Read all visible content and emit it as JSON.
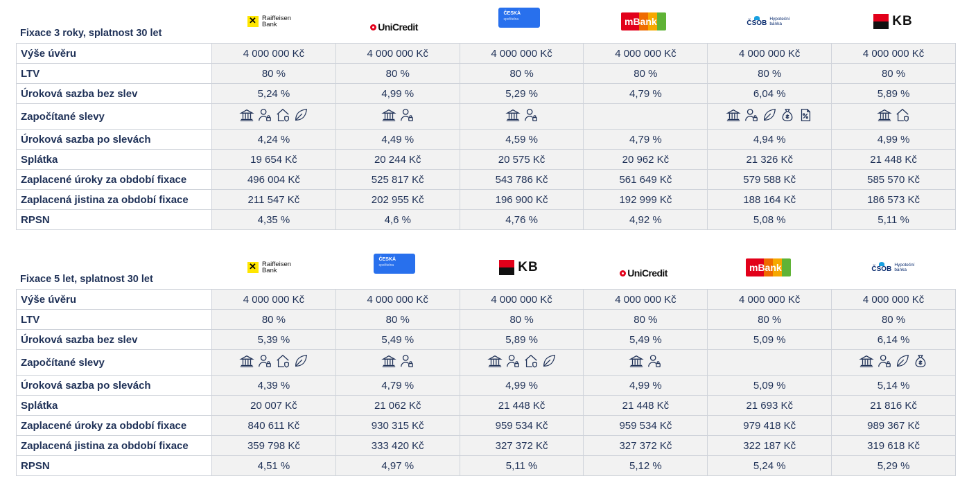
{
  "banks": {
    "raiffeisen": {
      "name": "Raiffeisen Bank",
      "l1": "Raiffeisen",
      "l2": "Bank"
    },
    "unicredit": {
      "name": "UniCredit"
    },
    "ceska": {
      "name": "Česká spořitelna",
      "l1": "ČESKÁ",
      "l2": "spořitelna"
    },
    "mbank": {
      "name": "mBank"
    },
    "csob": {
      "name": "ČSOB Hypoteční banka",
      "l1": "ČSOB",
      "l2": "Hypoteční",
      "l3": "banka"
    },
    "kb": {
      "name": "KB"
    }
  },
  "labels": {
    "amount": "Výše úvěru",
    "ltv": "LTV",
    "rate_base": "Úroková sazba bez slev",
    "discounts": "Započítané slevy",
    "rate_after": "Úroková sazba po slevách",
    "payment": "Splátka",
    "interest": "Zaplacené úroky za období fixace",
    "principal": "Zaplacená jistina za období fixace",
    "rpsn": "RPSN"
  },
  "icon_names": {
    "bank": "bank-building-icon",
    "person": "person-insurance-icon",
    "house": "house-insurance-icon",
    "leaf": "leaf-eco-icon",
    "money": "money-bag-icon",
    "percent": "percent-document-icon"
  },
  "tables": [
    {
      "title": "Fixace 3 roky, splatnost 30 let",
      "banks": [
        "raiffeisen",
        "unicredit",
        "ceska",
        "mbank",
        "csob",
        "kb"
      ],
      "rows": {
        "amount": [
          "4 000 000 Kč",
          "4 000 000 Kč",
          "4 000 000 Kč",
          "4 000 000 Kč",
          "4 000 000 Kč",
          "4 000 000 Kč"
        ],
        "ltv": [
          "80 %",
          "80 %",
          "80 %",
          "80 %",
          "80 %",
          "80 %"
        ],
        "rate_base": [
          "5,24 %",
          "4,99 %",
          "5,29 %",
          "4,79 %",
          "6,04 %",
          "5,89 %"
        ],
        "discounts": [
          [
            "bank",
            "person",
            "house",
            "leaf"
          ],
          [
            "bank",
            "person"
          ],
          [
            "bank",
            "person"
          ],
          [],
          [
            "bank",
            "person",
            "leaf",
            "money",
            "percent"
          ],
          [
            "bank",
            "house"
          ]
        ],
        "rate_after": [
          "4,24 %",
          "4,49 %",
          "4,59 %",
          "4,79 %",
          "4,94 %",
          "4,99 %"
        ],
        "payment": [
          "19 654 Kč",
          "20 244 Kč",
          "20 575 Kč",
          "20 962 Kč",
          "21 326 Kč",
          "21 448 Kč"
        ],
        "interest": [
          "496 004 Kč",
          "525 817 Kč",
          "543 786 Kč",
          "561 649 Kč",
          "579 588 Kč",
          "585 570 Kč"
        ],
        "principal": [
          "211 547 Kč",
          "202 955 Kč",
          "196 900 Kč",
          "192 999 Kč",
          "188 164 Kč",
          "186 573 Kč"
        ],
        "rpsn": [
          "4,35 %",
          "4,6 %",
          "4,76 %",
          "4,92 %",
          "5,08 %",
          "5,11 %"
        ]
      }
    },
    {
      "title": "Fixace 5 let, splatnost 30 let",
      "banks": [
        "raiffeisen",
        "ceska",
        "kb",
        "unicredit",
        "mbank",
        "csob"
      ],
      "rows": {
        "amount": [
          "4 000 000 Kč",
          "4 000 000 Kč",
          "4 000 000 Kč",
          "4 000 000 Kč",
          "4 000 000 Kč",
          "4 000 000 Kč"
        ],
        "ltv": [
          "80 %",
          "80 %",
          "80 %",
          "80 %",
          "80 %",
          "80 %"
        ],
        "rate_base": [
          "5,39 %",
          "5,49 %",
          "5,89 %",
          "5,49 %",
          "5,09 %",
          "6,14 %"
        ],
        "discounts": [
          [
            "bank",
            "person",
            "house",
            "leaf"
          ],
          [
            "bank",
            "person"
          ],
          [
            "bank",
            "person",
            "house",
            "leaf"
          ],
          [
            "bank",
            "person"
          ],
          [],
          [
            "bank",
            "person",
            "leaf",
            "money"
          ]
        ],
        "rate_after": [
          "4,39 %",
          "4,79 %",
          "4,99 %",
          "4,99 %",
          "5,09 %",
          "5,14 %"
        ],
        "payment": [
          "20 007 Kč",
          "21 062 Kč",
          "21 448 Kč",
          "21 448 Kč",
          "21 693 Kč",
          "21 816 Kč"
        ],
        "interest": [
          "840 611 Kč",
          "930 315 Kč",
          "959 534 Kč",
          "959 534 Kč",
          "979 418 Kč",
          "989 367 Kč"
        ],
        "principal": [
          "359 798 Kč",
          "333 420 Kč",
          "327 372 Kč",
          "327 372 Kč",
          "322 187 Kč",
          "319 618 Kč"
        ],
        "rpsn": [
          "4,51 %",
          "4,97 %",
          "5,11 %",
          "5,12 %",
          "5,24 %",
          "5,29 %"
        ]
      }
    }
  ]
}
